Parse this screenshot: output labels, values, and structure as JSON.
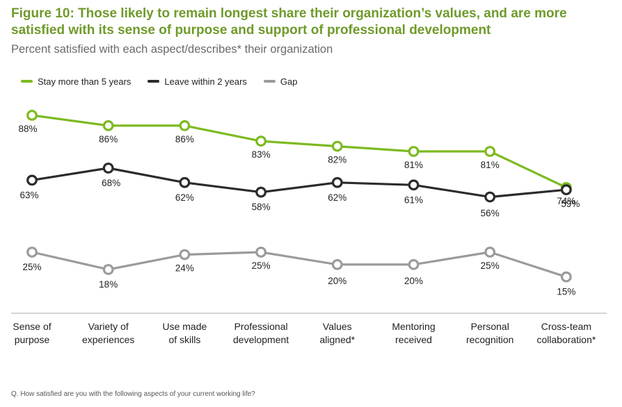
{
  "title": "Figure 10: Those likely to remain longest share their organization’s values, and are more satisfied with its sense of purpose and support of professional development",
  "subtitle": "Percent satisfied with each aspect/describes* their organization",
  "footnote": "Q. How satisfied are you with the following aspects of your current working life?",
  "chart_data": {
    "type": "line",
    "categories": [
      [
        "Sense of",
        "purpose"
      ],
      [
        "Variety of",
        "experiences"
      ],
      [
        "Use made",
        "of skills"
      ],
      [
        "Professional",
        "development"
      ],
      [
        "Values",
        "aligned*"
      ],
      [
        "Mentoring",
        "received"
      ],
      [
        "Personal",
        "recognition"
      ],
      [
        "Cross-team",
        "collaboration*"
      ]
    ],
    "series": [
      {
        "name": "Stay more than 5 years",
        "color": "#7dba21",
        "values": [
          88,
          86,
          86,
          83,
          82,
          81,
          81,
          74
        ]
      },
      {
        "name": "Leave within 2 years",
        "color": "#2b2b2b",
        "values": [
          63,
          68,
          62,
          58,
          62,
          61,
          56,
          59
        ]
      },
      {
        "name": "Gap",
        "color": "#9b9b9b",
        "values": [
          25,
          18,
          24,
          25,
          20,
          20,
          25,
          15
        ]
      }
    ],
    "value_suffix": "%",
    "grid": false,
    "legend_position": "top-left"
  }
}
